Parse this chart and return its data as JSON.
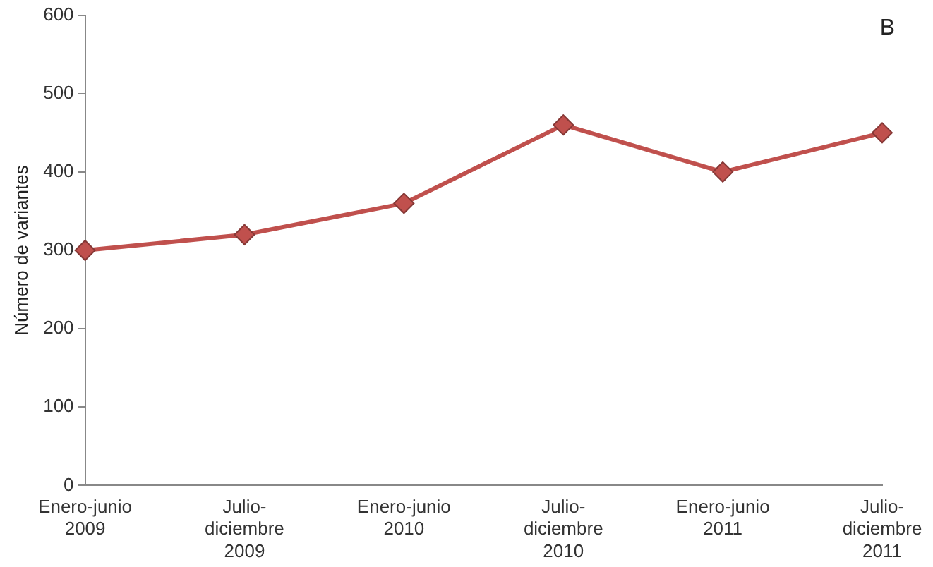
{
  "chart_data": {
    "type": "line",
    "ylabel": "Número de variantes",
    "categories": [
      "Enero-junio\n2009",
      "Julio-\ndiciembre\n2009",
      "Enero-junio\n2010",
      "Julio-\ndiciembre\n2010",
      "Enero-junio\n2011",
      "Julio-\ndiciembre\n2011"
    ],
    "series": [
      {
        "color": "#c0504d",
        "values": [
          300,
          320,
          360,
          460,
          400,
          450
        ]
      }
    ],
    "ylim": [
      0,
      600
    ],
    "yticks": [
      0,
      100,
      200,
      300,
      400,
      500,
      600
    ],
    "grid": false,
    "legend": false,
    "marker": "diamond",
    "line_style": "solid",
    "annotations": [
      "B"
    ]
  }
}
